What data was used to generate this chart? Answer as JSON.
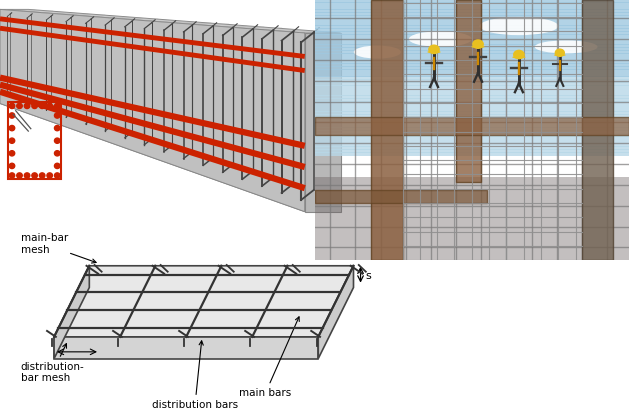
{
  "fig_width": 6.29,
  "fig_height": 4.2,
  "bg_color": "#ffffff",
  "beam_colors": {
    "concrete_top": "#d4d4d4",
    "concrete_front": "#c0c0c0",
    "concrete_side": "#b8b8b8",
    "rebar": "#cc2200",
    "stirrup": "#444444"
  },
  "slab_colors": {
    "top": "#e0e0e0",
    "front": "#d0d0d0",
    "side_right": "#c8c8c8",
    "side_left": "#c4c4c4",
    "bar": "#333333",
    "outline": "#444444"
  },
  "photo_colors": {
    "sky_top": "#a8c8e8",
    "sky_bottom": "#c8dff0",
    "steel_main": "#888070",
    "steel_dark": "#706050",
    "rebar_grid": "#909090",
    "worker_hat": "#e8c020",
    "worker_body": "#303030"
  },
  "labels": {
    "main_bar_mesh": "main-bar\nmesh",
    "dist_bar_mesh": "distribution-\nbar mesh",
    "main_bars": "main bars",
    "dist_bars": "distribution bars",
    "s": "s"
  },
  "cross_section": {
    "rebar_color": "#cc2200",
    "outline_color": "#cc2200",
    "stirrup_color": "#555555"
  }
}
